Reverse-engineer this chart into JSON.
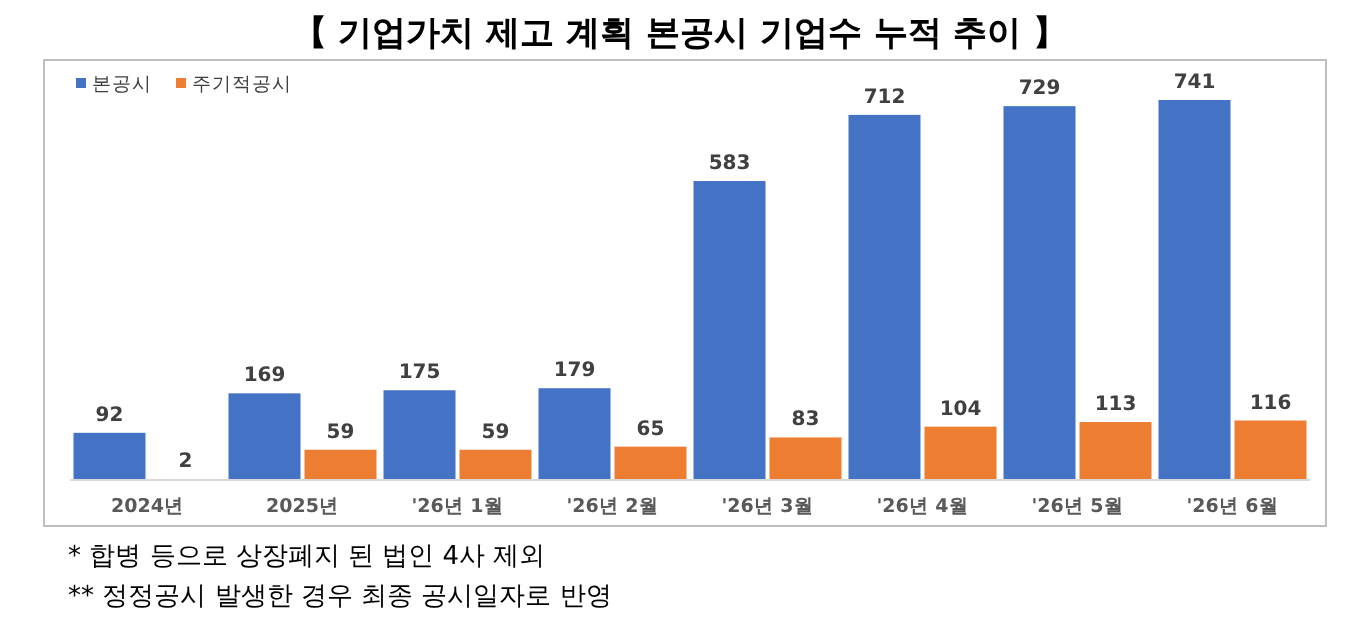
{
  "chart_data": {
    "type": "bar",
    "title": "【 기업가치 제고 계획 본공시 기업수 누적 추이 】",
    "categories": [
      "2024년",
      "2025년",
      "'26년 1월",
      "'26년 2월",
      "'26년 3월",
      "'26년 4월",
      "'26년 5월",
      "'26년 6월"
    ],
    "series": [
      {
        "name": "본공시",
        "color": "#4472c4",
        "values": [
          92,
          169,
          175,
          179,
          583,
          712,
          729,
          741
        ]
      },
      {
        "name": "주기적공시",
        "color": "#ed7d31",
        "values": [
          2,
          59,
          59,
          65,
          83,
          104,
          113,
          116
        ]
      }
    ],
    "data_labels": true,
    "legend": "top left",
    "tick_labels": "x",
    "annotations": [
      "*  합병 등으로 상장폐지 된 법인 4사 제외",
      "**  정정공시 발생한 경우 최종 공시일자로 반영"
    ]
  }
}
